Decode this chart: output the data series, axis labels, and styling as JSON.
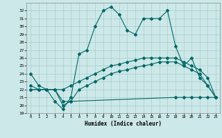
{
  "xlabel": "Humidex (Indice chaleur)",
  "xlim": [
    -0.5,
    23.5
  ],
  "ylim": [
    19,
    33
  ],
  "yticks": [
    19,
    20,
    21,
    22,
    23,
    24,
    25,
    26,
    27,
    28,
    29,
    30,
    31,
    32
  ],
  "xticks": [
    0,
    1,
    2,
    3,
    4,
    5,
    6,
    7,
    8,
    9,
    10,
    11,
    12,
    13,
    14,
    15,
    16,
    17,
    18,
    19,
    20,
    21,
    22,
    23
  ],
  "background_color": "#cce8e8",
  "grid_color": "#aacccc",
  "line_color": "#006666",
  "line1_x": [
    0,
    1,
    2,
    3,
    4,
    5,
    6,
    7,
    8,
    9,
    10,
    11,
    12,
    13,
    14,
    15,
    16,
    17,
    18,
    19,
    20,
    21,
    22,
    23
  ],
  "line1_y": [
    24.0,
    22.5,
    22.0,
    20.5,
    19.5,
    21.0,
    26.5,
    27.0,
    30.0,
    32.0,
    32.5,
    31.5,
    29.5,
    29.0,
    31.0,
    31.0,
    31.0,
    32.0,
    27.5,
    25.0,
    26.0,
    23.5,
    22.5,
    21.0
  ],
  "line2_x": [
    0,
    1,
    2,
    3,
    4,
    5,
    6,
    7,
    8,
    9,
    10,
    11,
    12,
    13,
    14,
    15,
    16,
    17,
    18,
    19,
    20,
    21,
    22,
    23
  ],
  "line2_y": [
    22.5,
    22.0,
    22.0,
    22.0,
    22.0,
    22.5,
    23.0,
    23.5,
    24.0,
    24.5,
    25.0,
    25.2,
    25.5,
    25.7,
    26.0,
    26.0,
    26.0,
    26.0,
    26.0,
    25.5,
    25.0,
    24.5,
    23.5,
    21.0
  ],
  "line3_x": [
    0,
    1,
    2,
    3,
    4,
    5,
    6,
    7,
    8,
    9,
    10,
    11,
    12,
    13,
    14,
    15,
    16,
    17,
    18,
    19,
    20,
    21,
    22,
    23
  ],
  "line3_y": [
    22.0,
    22.0,
    22.0,
    22.0,
    20.5,
    20.5,
    22.0,
    22.5,
    23.0,
    23.5,
    24.0,
    24.3,
    24.5,
    24.8,
    25.0,
    25.2,
    25.5,
    25.5,
    25.5,
    25.0,
    24.5,
    24.0,
    22.5,
    21.0
  ],
  "line4_x": [
    0,
    1,
    2,
    3,
    4,
    5,
    18,
    19,
    20,
    21,
    22,
    23
  ],
  "line4_y": [
    22.0,
    22.0,
    22.0,
    22.0,
    20.0,
    20.5,
    21.0,
    21.0,
    21.0,
    21.0,
    21.0,
    21.0
  ]
}
